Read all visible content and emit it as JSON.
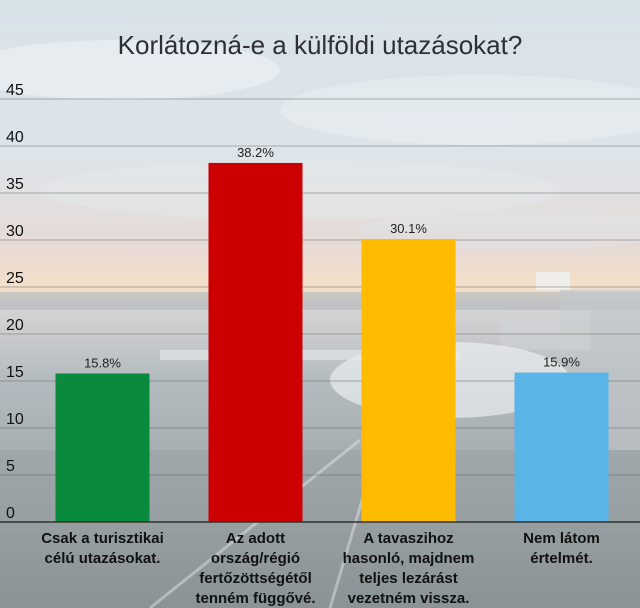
{
  "chart_data": {
    "type": "bar",
    "title": "Korlátozná-e a külföldi utazásokat?",
    "categories": [
      [
        "Csak a turisztikai",
        "célú utazásokat."
      ],
      [
        "Az adott",
        "ország/régió",
        "fertőzöttségétől",
        "tenném függővé."
      ],
      [
        "A tavaszihoz",
        "hasonló, majdnem",
        "teljes lezárást",
        "vezetném vissza."
      ],
      [
        "Nem látom",
        "értelmét."
      ]
    ],
    "values": [
      15.8,
      38.2,
      30.1,
      15.9
    ],
    "value_labels": [
      "15.8%",
      "38.2%",
      "30.1%",
      "15.9%"
    ],
    "colors": [
      "#0a8a3c",
      "#cc0000",
      "#ffbb00",
      "#5ab4e8"
    ],
    "ylim": [
      0,
      45
    ],
    "yticks": [
      0,
      5,
      10,
      15,
      20,
      25,
      30,
      35,
      40,
      45
    ],
    "grid": true,
    "xlabel": "",
    "ylabel": ""
  }
}
